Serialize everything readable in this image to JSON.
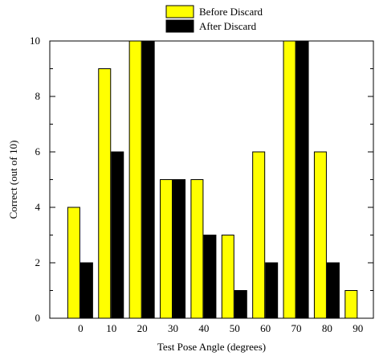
{
  "chart_data": {
    "type": "bar",
    "categories": [
      "0",
      "10",
      "20",
      "30",
      "40",
      "50",
      "60",
      "70",
      "80",
      "90"
    ],
    "series": [
      {
        "name": "Before Discard",
        "values": [
          4,
          9,
          10,
          5,
          5,
          3,
          6,
          10,
          6,
          1
        ],
        "color": "#ffff00"
      },
      {
        "name": "After Discard",
        "values": [
          2,
          6,
          10,
          5,
          3,
          1,
          2,
          10,
          2,
          0
        ],
        "color": "#000000"
      }
    ],
    "xlabel": "Test Pose Angle (degrees)",
    "ylabel": "Correct (out of 10)",
    "ylim": [
      0,
      10
    ],
    "yticks": [
      "0",
      "2",
      "4",
      "6",
      "8",
      "10"
    ],
    "grid": false,
    "legend_position": "top-center"
  }
}
